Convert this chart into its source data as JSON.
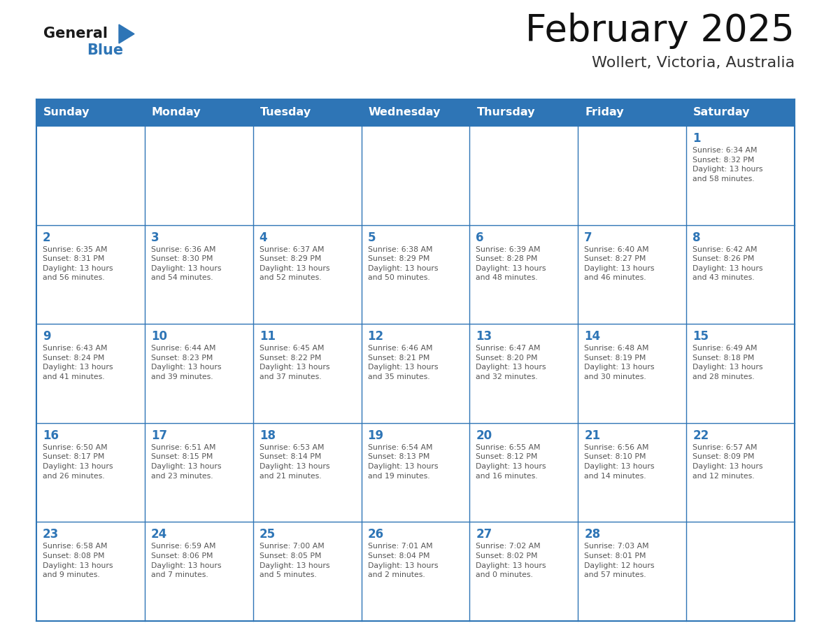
{
  "title": "February 2025",
  "subtitle": "Wollert, Victoria, Australia",
  "header_bg": "#2E75B6",
  "header_text_color": "#FFFFFF",
  "header_days": [
    "Sunday",
    "Monday",
    "Tuesday",
    "Wednesday",
    "Thursday",
    "Friday",
    "Saturday"
  ],
  "grid_line_color": "#2E75B6",
  "cell_bg": "#FFFFFF",
  "day_number_color": "#2E75B6",
  "info_text_color": "#555555",
  "logo_general_color": "#1a1a1a",
  "logo_blue_color": "#2E75B6",
  "weeks": [
    [
      {
        "day": null,
        "info": ""
      },
      {
        "day": null,
        "info": ""
      },
      {
        "day": null,
        "info": ""
      },
      {
        "day": null,
        "info": ""
      },
      {
        "day": null,
        "info": ""
      },
      {
        "day": null,
        "info": ""
      },
      {
        "day": 1,
        "info": "Sunrise: 6:34 AM\nSunset: 8:32 PM\nDaylight: 13 hours\nand 58 minutes."
      }
    ],
    [
      {
        "day": 2,
        "info": "Sunrise: 6:35 AM\nSunset: 8:31 PM\nDaylight: 13 hours\nand 56 minutes."
      },
      {
        "day": 3,
        "info": "Sunrise: 6:36 AM\nSunset: 8:30 PM\nDaylight: 13 hours\nand 54 minutes."
      },
      {
        "day": 4,
        "info": "Sunrise: 6:37 AM\nSunset: 8:29 PM\nDaylight: 13 hours\nand 52 minutes."
      },
      {
        "day": 5,
        "info": "Sunrise: 6:38 AM\nSunset: 8:29 PM\nDaylight: 13 hours\nand 50 minutes."
      },
      {
        "day": 6,
        "info": "Sunrise: 6:39 AM\nSunset: 8:28 PM\nDaylight: 13 hours\nand 48 minutes."
      },
      {
        "day": 7,
        "info": "Sunrise: 6:40 AM\nSunset: 8:27 PM\nDaylight: 13 hours\nand 46 minutes."
      },
      {
        "day": 8,
        "info": "Sunrise: 6:42 AM\nSunset: 8:26 PM\nDaylight: 13 hours\nand 43 minutes."
      }
    ],
    [
      {
        "day": 9,
        "info": "Sunrise: 6:43 AM\nSunset: 8:24 PM\nDaylight: 13 hours\nand 41 minutes."
      },
      {
        "day": 10,
        "info": "Sunrise: 6:44 AM\nSunset: 8:23 PM\nDaylight: 13 hours\nand 39 minutes."
      },
      {
        "day": 11,
        "info": "Sunrise: 6:45 AM\nSunset: 8:22 PM\nDaylight: 13 hours\nand 37 minutes."
      },
      {
        "day": 12,
        "info": "Sunrise: 6:46 AM\nSunset: 8:21 PM\nDaylight: 13 hours\nand 35 minutes."
      },
      {
        "day": 13,
        "info": "Sunrise: 6:47 AM\nSunset: 8:20 PM\nDaylight: 13 hours\nand 32 minutes."
      },
      {
        "day": 14,
        "info": "Sunrise: 6:48 AM\nSunset: 8:19 PM\nDaylight: 13 hours\nand 30 minutes."
      },
      {
        "day": 15,
        "info": "Sunrise: 6:49 AM\nSunset: 8:18 PM\nDaylight: 13 hours\nand 28 minutes."
      }
    ],
    [
      {
        "day": 16,
        "info": "Sunrise: 6:50 AM\nSunset: 8:17 PM\nDaylight: 13 hours\nand 26 minutes."
      },
      {
        "day": 17,
        "info": "Sunrise: 6:51 AM\nSunset: 8:15 PM\nDaylight: 13 hours\nand 23 minutes."
      },
      {
        "day": 18,
        "info": "Sunrise: 6:53 AM\nSunset: 8:14 PM\nDaylight: 13 hours\nand 21 minutes."
      },
      {
        "day": 19,
        "info": "Sunrise: 6:54 AM\nSunset: 8:13 PM\nDaylight: 13 hours\nand 19 minutes."
      },
      {
        "day": 20,
        "info": "Sunrise: 6:55 AM\nSunset: 8:12 PM\nDaylight: 13 hours\nand 16 minutes."
      },
      {
        "day": 21,
        "info": "Sunrise: 6:56 AM\nSunset: 8:10 PM\nDaylight: 13 hours\nand 14 minutes."
      },
      {
        "day": 22,
        "info": "Sunrise: 6:57 AM\nSunset: 8:09 PM\nDaylight: 13 hours\nand 12 minutes."
      }
    ],
    [
      {
        "day": 23,
        "info": "Sunrise: 6:58 AM\nSunset: 8:08 PM\nDaylight: 13 hours\nand 9 minutes."
      },
      {
        "day": 24,
        "info": "Sunrise: 6:59 AM\nSunset: 8:06 PM\nDaylight: 13 hours\nand 7 minutes."
      },
      {
        "day": 25,
        "info": "Sunrise: 7:00 AM\nSunset: 8:05 PM\nDaylight: 13 hours\nand 5 minutes."
      },
      {
        "day": 26,
        "info": "Sunrise: 7:01 AM\nSunset: 8:04 PM\nDaylight: 13 hours\nand 2 minutes."
      },
      {
        "day": 27,
        "info": "Sunrise: 7:02 AM\nSunset: 8:02 PM\nDaylight: 13 hours\nand 0 minutes."
      },
      {
        "day": 28,
        "info": "Sunrise: 7:03 AM\nSunset: 8:01 PM\nDaylight: 12 hours\nand 57 minutes."
      },
      {
        "day": null,
        "info": ""
      }
    ]
  ]
}
